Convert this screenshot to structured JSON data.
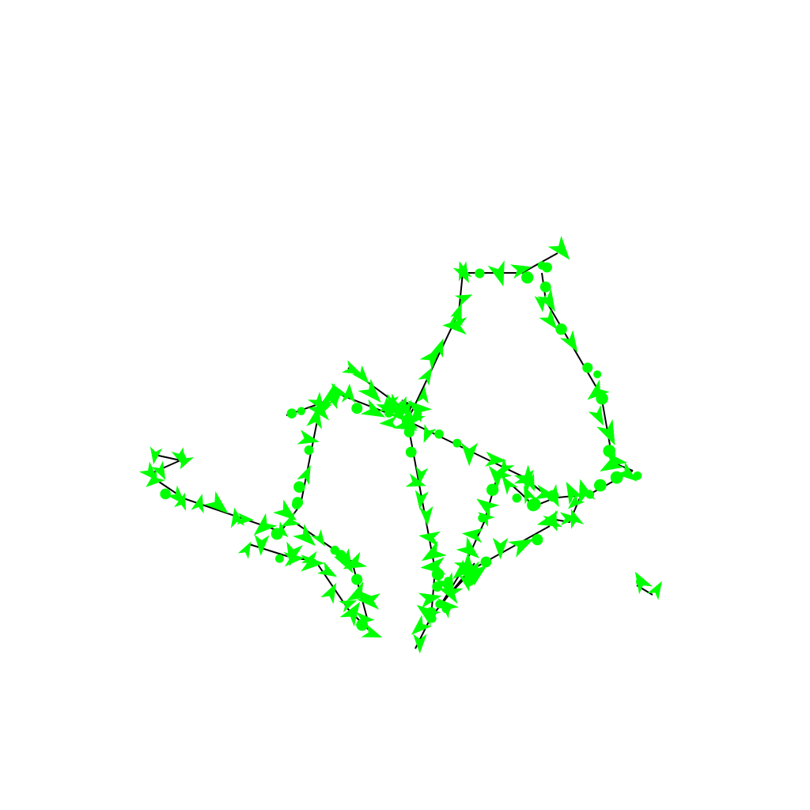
{
  "scene": {
    "background": "#ffffff",
    "path_color": "#000000",
    "marker_color": "#00ff00"
  }
}
